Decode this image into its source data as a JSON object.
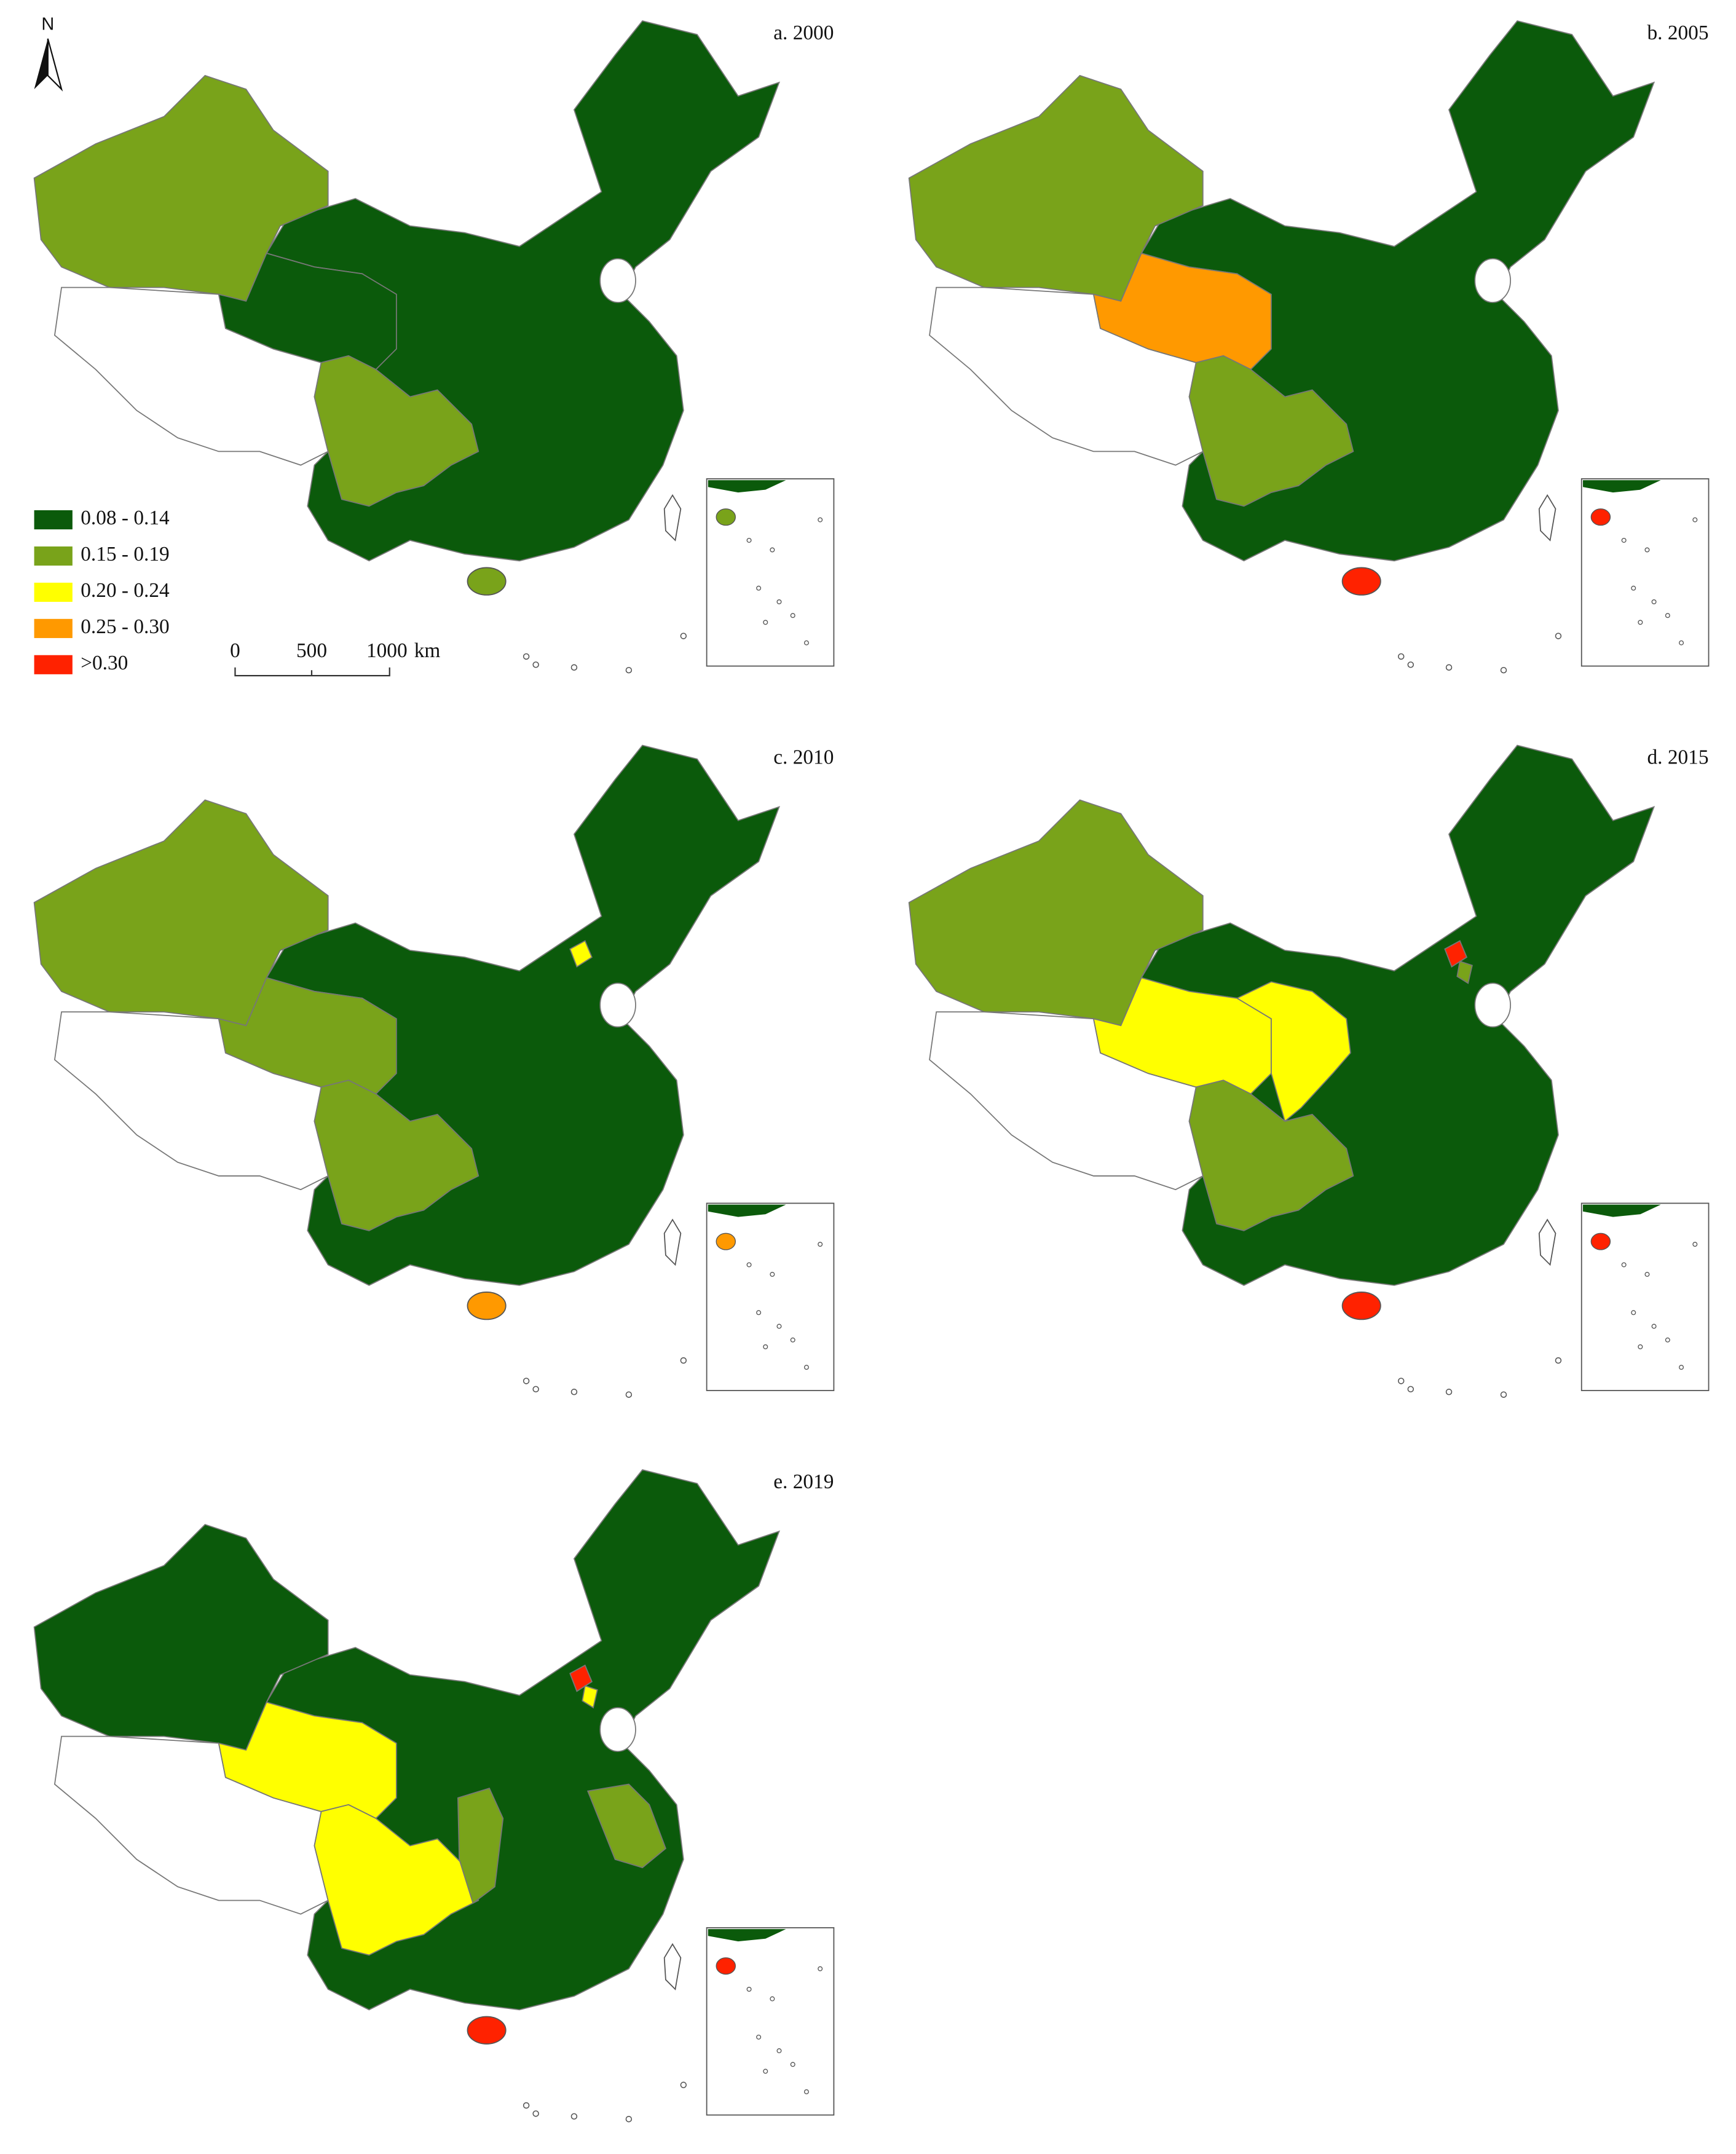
{
  "panels": [
    {
      "title": "a. 2000"
    },
    {
      "title": "b. 2005"
    },
    {
      "title": "c. 2010"
    },
    {
      "title": "d. 2015"
    },
    {
      "title": "e. 2019"
    }
  ],
  "legend": {
    "items": [
      {
        "label": "0.08 - 0.14",
        "color": "#0b5a0b"
      },
      {
        "label": "0.15 - 0.19",
        "color": "#79a31a"
      },
      {
        "label": "0.20 - 0.24",
        "color": "#ffff00"
      },
      {
        "label": "0.25 - 0.30",
        "color": "#ff9900"
      },
      {
        "label": ">0.30",
        "color": "#ff2200"
      }
    ]
  },
  "scale_bar": {
    "ticks": [
      "0",
      "500",
      "1000"
    ],
    "unit": "km"
  },
  "north": "N"
}
